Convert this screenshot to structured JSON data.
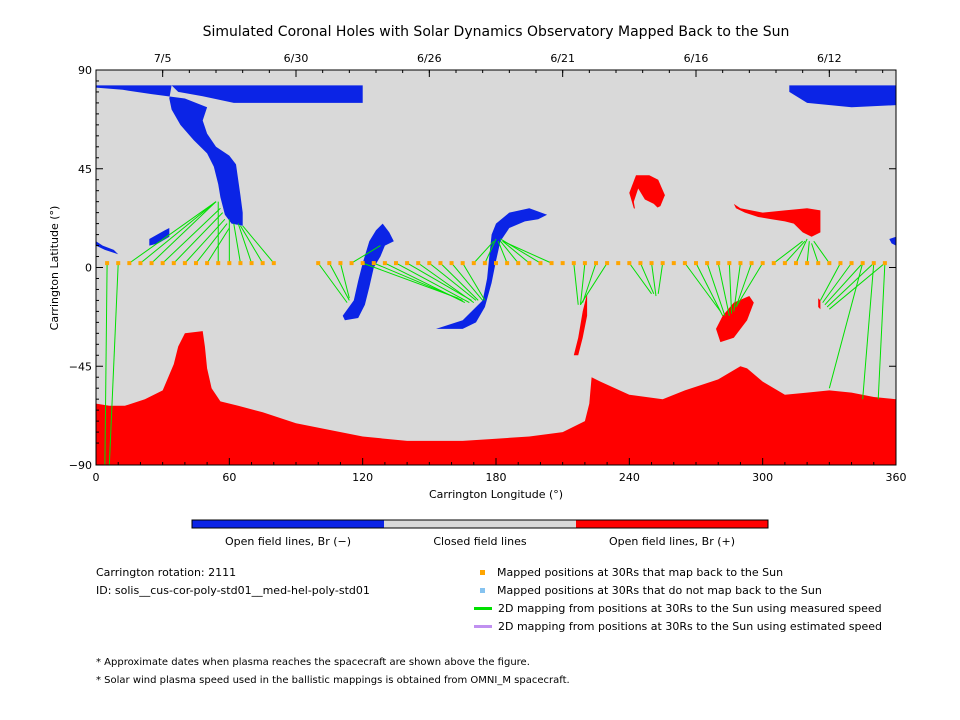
{
  "chart_data": {
    "type": "map",
    "title": "Simulated Coronal Holes with Solar Dynamics Observatory Mapped Back to the Sun",
    "xlabel": "Carrington Longitude (°)",
    "ylabel": "Carrington Latitude (°)",
    "xlim": [
      0,
      360
    ],
    "ylim": [
      -90,
      90
    ],
    "x_ticks": [
      "0",
      "60",
      "120",
      "180",
      "240",
      "300",
      "360"
    ],
    "y_ticks": [
      "90",
      "45",
      "0",
      "−45",
      "−90"
    ],
    "top_axis_dates": [
      {
        "label": "7/5",
        "lon": 30
      },
      {
        "label": "6/30",
        "lon": 90
      },
      {
        "label": "6/26",
        "lon": 150
      },
      {
        "label": "6/21",
        "lon": 210
      },
      {
        "label": "6/16",
        "lon": 270
      },
      {
        "label": "6/12",
        "lon": 330
      }
    ],
    "colors": {
      "negative": "#0b24e6",
      "closed": "#d9d9d9",
      "positive": "#ff0000",
      "mapped_point": "#ffa500",
      "unmapped_point": "#86c3f0",
      "measured_line": "#00e000",
      "estimated_line": "#c090f0"
    },
    "colorbar": [
      {
        "label": "Open field lines, Br (−)",
        "color": "#0b24e6"
      },
      {
        "label": "Closed field lines",
        "color": "#d9d9d9"
      },
      {
        "label": "Open field lines, Br (+)",
        "color": "#ff0000"
      }
    ],
    "negative_holes": [
      [
        [
          0,
          83
        ],
        [
          120,
          83
        ],
        [
          120,
          75
        ],
        [
          62,
          75
        ],
        [
          48,
          78
        ],
        [
          37,
          80
        ],
        [
          34,
          83
        ],
        [
          33,
          77
        ],
        [
          34,
          72
        ],
        [
          38,
          65
        ],
        [
          44,
          58
        ],
        [
          50,
          52
        ],
        [
          53,
          46
        ],
        [
          55,
          38
        ],
        [
          56,
          32
        ],
        [
          57,
          28
        ],
        [
          58,
          24
        ],
        [
          61,
          20
        ],
        [
          66,
          19
        ],
        [
          66,
          25
        ],
        [
          65,
          33
        ],
        [
          64,
          40
        ],
        [
          63,
          47
        ],
        [
          60,
          51
        ],
        [
          54,
          55
        ],
        [
          50,
          61
        ],
        [
          48,
          67
        ],
        [
          50,
          73
        ],
        [
          40,
          77
        ],
        [
          25,
          79
        ],
        [
          12,
          81
        ],
        [
          0,
          82
        ]
      ],
      [
        [
          312,
          83
        ],
        [
          360,
          83
        ],
        [
          360,
          74
        ],
        [
          340,
          73
        ],
        [
          320,
          75
        ],
        [
          312,
          80
        ]
      ],
      [
        [
          0,
          12
        ],
        [
          3,
          10
        ],
        [
          8,
          8
        ],
        [
          10,
          6
        ],
        [
          4,
          8
        ],
        [
          0,
          10
        ]
      ],
      [
        [
          357,
          13
        ],
        [
          360,
          14
        ],
        [
          360,
          10
        ],
        [
          358,
          11
        ]
      ],
      [
        [
          24,
          13
        ],
        [
          31,
          17
        ],
        [
          33,
          18
        ],
        [
          33,
          14
        ],
        [
          28,
          11
        ],
        [
          24,
          10
        ]
      ],
      [
        [
          111,
          -22
        ],
        [
          116,
          -15
        ],
        [
          118,
          -6
        ],
        [
          120,
          2
        ],
        [
          123,
          12
        ],
        [
          126,
          17
        ],
        [
          129,
          20
        ],
        [
          132,
          16
        ],
        [
          134,
          12
        ],
        [
          130,
          10
        ],
        [
          128,
          5
        ],
        [
          125,
          0
        ],
        [
          123,
          -9
        ],
        [
          121,
          -17
        ],
        [
          118,
          -23
        ],
        [
          112,
          -24
        ]
      ],
      [
        [
          153,
          -28
        ],
        [
          165,
          -24
        ],
        [
          174,
          -15
        ],
        [
          176,
          -5
        ],
        [
          177,
          5
        ],
        [
          178,
          15
        ],
        [
          180,
          20
        ],
        [
          186,
          25
        ],
        [
          195,
          27
        ],
        [
          203,
          24
        ],
        [
          199,
          22
        ],
        [
          193,
          21
        ],
        [
          186,
          18
        ],
        [
          182,
          12
        ],
        [
          180,
          3
        ],
        [
          178,
          -7
        ],
        [
          175,
          -18
        ],
        [
          171,
          -25
        ],
        [
          165,
          -28
        ]
      ]
    ],
    "positive_holes": [
      [
        [
          0,
          -62
        ],
        [
          6,
          -63
        ],
        [
          13,
          -63
        ],
        [
          22,
          -60
        ],
        [
          30,
          -56
        ],
        [
          35,
          -44
        ],
        [
          37,
          -36
        ],
        [
          40,
          -30
        ],
        [
          48,
          -29
        ],
        [
          49,
          -36
        ],
        [
          50,
          -46
        ],
        [
          52,
          -55
        ],
        [
          56,
          -61
        ],
        [
          64,
          -63
        ],
        [
          75,
          -66
        ],
        [
          90,
          -71
        ],
        [
          105,
          -74
        ],
        [
          120,
          -77
        ],
        [
          140,
          -79
        ],
        [
          165,
          -79
        ],
        [
          180,
          -78
        ],
        [
          195,
          -77
        ],
        [
          210,
          -75
        ],
        [
          220,
          -70
        ],
        [
          222,
          -62
        ],
        [
          223,
          -50
        ],
        [
          227,
          -52
        ],
        [
          240,
          -58
        ],
        [
          255,
          -60
        ],
        [
          265,
          -56
        ],
        [
          280,
          -51
        ],
        [
          290,
          -45
        ],
        [
          293,
          -46
        ],
        [
          300,
          -52
        ],
        [
          310,
          -58
        ],
        [
          320,
          -57
        ],
        [
          330,
          -56
        ],
        [
          340,
          -57
        ],
        [
          350,
          -59
        ],
        [
          360,
          -60
        ],
        [
          360,
          -90
        ],
        [
          0,
          -90
        ]
      ],
      [
        [
          249,
          42
        ],
        [
          253,
          40
        ],
        [
          256,
          33
        ],
        [
          254,
          28
        ],
        [
          248,
          25
        ],
        [
          242,
          27
        ],
        [
          240,
          34
        ],
        [
          243,
          42
        ]
      ],
      [
        [
          287,
          29
        ],
        [
          290,
          27
        ],
        [
          300,
          25
        ],
        [
          310,
          26
        ],
        [
          320,
          27
        ],
        [
          326,
          26
        ],
        [
          326,
          16
        ],
        [
          322,
          14
        ],
        [
          318,
          16
        ],
        [
          314,
          20
        ],
        [
          310,
          21
        ],
        [
          304,
          22
        ],
        [
          298,
          23
        ],
        [
          292,
          25
        ],
        [
          288,
          27
        ]
      ],
      [
        [
          215,
          -40
        ],
        [
          217,
          -32
        ],
        [
          219,
          -20
        ],
        [
          221,
          -12
        ],
        [
          221,
          -22
        ],
        [
          219,
          -32
        ],
        [
          217,
          -40
        ]
      ],
      [
        [
          279,
          -28
        ],
        [
          282,
          -22
        ],
        [
          287,
          -16
        ],
        [
          294,
          -13
        ],
        [
          296,
          -16
        ],
        [
          293,
          -24
        ],
        [
          287,
          -32
        ],
        [
          281,
          -34
        ]
      ],
      [
        [
          325,
          -14
        ],
        [
          326,
          -15
        ],
        [
          326,
          -19
        ],
        [
          325,
          -18
        ]
      ]
    ],
    "positive_hole_gaps": [
      [
        [
          244,
          36
        ],
        [
          247,
          31
        ],
        [
          251,
          29
        ],
        [
          254,
          26
        ],
        [
          252,
          22
        ],
        [
          247,
          21
        ],
        [
          243,
          24
        ],
        [
          242,
          30
        ]
      ]
    ],
    "mapped_points_30Rs_lon": [
      5,
      10,
      15,
      20,
      25,
      30,
      35,
      40,
      45,
      50,
      55,
      60,
      65,
      70,
      75,
      80,
      100,
      105,
      110,
      115,
      120,
      125,
      130,
      135,
      140,
      145,
      150,
      155,
      160,
      165,
      170,
      175,
      180,
      185,
      190,
      195,
      200,
      205,
      210,
      215,
      220,
      225,
      230,
      235,
      240,
      245,
      250,
      255,
      260,
      265,
      270,
      275,
      280,
      285,
      290,
      295,
      300,
      305,
      310,
      315,
      320,
      325,
      330,
      335,
      340,
      345,
      350,
      355
    ],
    "mapped_points_lat": 2,
    "mapping_lines_measured": [
      [
        [
          5,
          2
        ],
        [
          4,
          -90
        ]
      ],
      [
        [
          10,
          2
        ],
        [
          6,
          -90
        ]
      ],
      [
        [
          15,
          2
        ],
        [
          54,
          30
        ]
      ],
      [
        [
          20,
          2
        ],
        [
          54,
          30
        ]
      ],
      [
        [
          25,
          2
        ],
        [
          54,
          30
        ]
      ],
      [
        [
          30,
          2
        ],
        [
          56,
          27
        ]
      ],
      [
        [
          35,
          2
        ],
        [
          57,
          25
        ]
      ],
      [
        [
          40,
          2
        ],
        [
          58,
          22
        ]
      ],
      [
        [
          45,
          2
        ],
        [
          59,
          20
        ]
      ],
      [
        [
          50,
          2
        ],
        [
          60,
          18
        ]
      ],
      [
        [
          55,
          2
        ],
        [
          55,
          30
        ]
      ],
      [
        [
          60,
          2
        ],
        [
          60,
          22
        ]
      ],
      [
        [
          65,
          2
        ],
        [
          62,
          20
        ]
      ],
      [
        [
          70,
          2
        ],
        [
          64,
          20
        ]
      ],
      [
        [
          75,
          2
        ],
        [
          65,
          19
        ]
      ],
      [
        [
          80,
          2
        ],
        [
          66,
          19
        ]
      ],
      [
        [
          100,
          2
        ],
        [
          113,
          -16
        ]
      ],
      [
        [
          105,
          2
        ],
        [
          114,
          -15
        ]
      ],
      [
        [
          110,
          2
        ],
        [
          114,
          -14
        ]
      ],
      [
        [
          115,
          2
        ],
        [
          128,
          10
        ]
      ],
      [
        [
          120,
          2
        ],
        [
          163,
          -14
        ]
      ],
      [
        [
          125,
          2
        ],
        [
          165,
          -15
        ]
      ],
      [
        [
          130,
          2
        ],
        [
          166,
          -16
        ]
      ],
      [
        [
          135,
          2
        ],
        [
          168,
          -16
        ]
      ],
      [
        [
          140,
          2
        ],
        [
          169,
          -15
        ]
      ],
      [
        [
          145,
          2
        ],
        [
          170,
          -16
        ]
      ],
      [
        [
          150,
          2
        ],
        [
          171,
          -15
        ]
      ],
      [
        [
          155,
          2
        ],
        [
          172,
          -15
        ]
      ],
      [
        [
          160,
          2
        ],
        [
          174,
          -15
        ]
      ],
      [
        [
          165,
          2
        ],
        [
          175,
          -15
        ]
      ],
      [
        [
          170,
          2
        ],
        [
          179,
          12
        ]
      ],
      [
        [
          175,
          2
        ],
        [
          180,
          13
        ]
      ],
      [
        [
          185,
          2
        ],
        [
          181,
          12
        ]
      ],
      [
        [
          190,
          2
        ],
        [
          182,
          12
        ]
      ],
      [
        [
          195,
          2
        ],
        [
          183,
          12
        ]
      ],
      [
        [
          200,
          2
        ],
        [
          182,
          13
        ]
      ],
      [
        [
          205,
          2
        ],
        [
          183,
          12
        ]
      ],
      [
        [
          215,
          2
        ],
        [
          217,
          -17
        ]
      ],
      [
        [
          220,
          2
        ],
        [
          218,
          -17
        ]
      ],
      [
        [
          225,
          2
        ],
        [
          219,
          -16
        ]
      ],
      [
        [
          230,
          2
        ],
        [
          218,
          -17
        ]
      ],
      [
        [
          240,
          2
        ],
        [
          250,
          -12
        ]
      ],
      [
        [
          245,
          2
        ],
        [
          251,
          -12
        ]
      ],
      [
        [
          250,
          2
        ],
        [
          252,
          -13
        ]
      ],
      [
        [
          255,
          2
        ],
        [
          253,
          -12
        ]
      ],
      [
        [
          265,
          2
        ],
        [
          281,
          -20
        ]
      ],
      [
        [
          270,
          2
        ],
        [
          282,
          -22
        ]
      ],
      [
        [
          275,
          2
        ],
        [
          283,
          -22
        ]
      ],
      [
        [
          280,
          2
        ],
        [
          285,
          -22
        ]
      ],
      [
        [
          285,
          2
        ],
        [
          286,
          -21
        ]
      ],
      [
        [
          290,
          2
        ],
        [
          287,
          -20
        ]
      ],
      [
        [
          295,
          2
        ],
        [
          288,
          -18
        ]
      ],
      [
        [
          300,
          2
        ],
        [
          288,
          -18
        ]
      ],
      [
        [
          305,
          2
        ],
        [
          318,
          12
        ]
      ],
      [
        [
          310,
          2
        ],
        [
          319,
          12
        ]
      ],
      [
        [
          315,
          2
        ],
        [
          320,
          13
        ]
      ],
      [
        [
          320,
          2
        ],
        [
          321,
          12
        ]
      ],
      [
        [
          325,
          2
        ],
        [
          322,
          11
        ]
      ],
      [
        [
          330,
          2
        ],
        [
          323,
          12
        ]
      ],
      [
        [
          335,
          2
        ],
        [
          326,
          -15
        ]
      ],
      [
        [
          340,
          2
        ],
        [
          327,
          -16
        ]
      ],
      [
        [
          345,
          2
        ],
        [
          328,
          -17
        ]
      ],
      [
        [
          350,
          2
        ],
        [
          329,
          -18
        ]
      ],
      [
        [
          355,
          2
        ],
        [
          330,
          -19
        ]
      ],
      [
        [
          345,
          2
        ],
        [
          330,
          -55
        ]
      ],
      [
        [
          350,
          2
        ],
        [
          345,
          -60
        ]
      ],
      [
        [
          355,
          2
        ],
        [
          352,
          -60
        ]
      ]
    ]
  },
  "legend": [
    {
      "label": "Mapped positions at 30Rs that map back to the Sun",
      "symbol": "square",
      "color": "#ffa500"
    },
    {
      "label": "Mapped positions at 30Rs that do not map back to the Sun",
      "symbol": "square",
      "color": "#86c3f0"
    },
    {
      "label": "2D mapping from positions at 30Rs to the Sun using measured speed",
      "symbol": "line",
      "color": "#00e000"
    },
    {
      "label": "2D mapping from positions at 30Rs to the Sun using estimated speed",
      "symbol": "line",
      "color": "#c090f0"
    }
  ],
  "info": {
    "rotation": "Carrington rotation: 2111",
    "id": "ID: solis__cus-cor-poly-std01__med-hel-poly-std01"
  },
  "notes": [
    "* Approximate dates when plasma reaches the spacecraft are shown above the figure.",
    "* Solar wind plasma speed used in the ballistic mappings is obtained from OMNI_M spacecraft."
  ]
}
